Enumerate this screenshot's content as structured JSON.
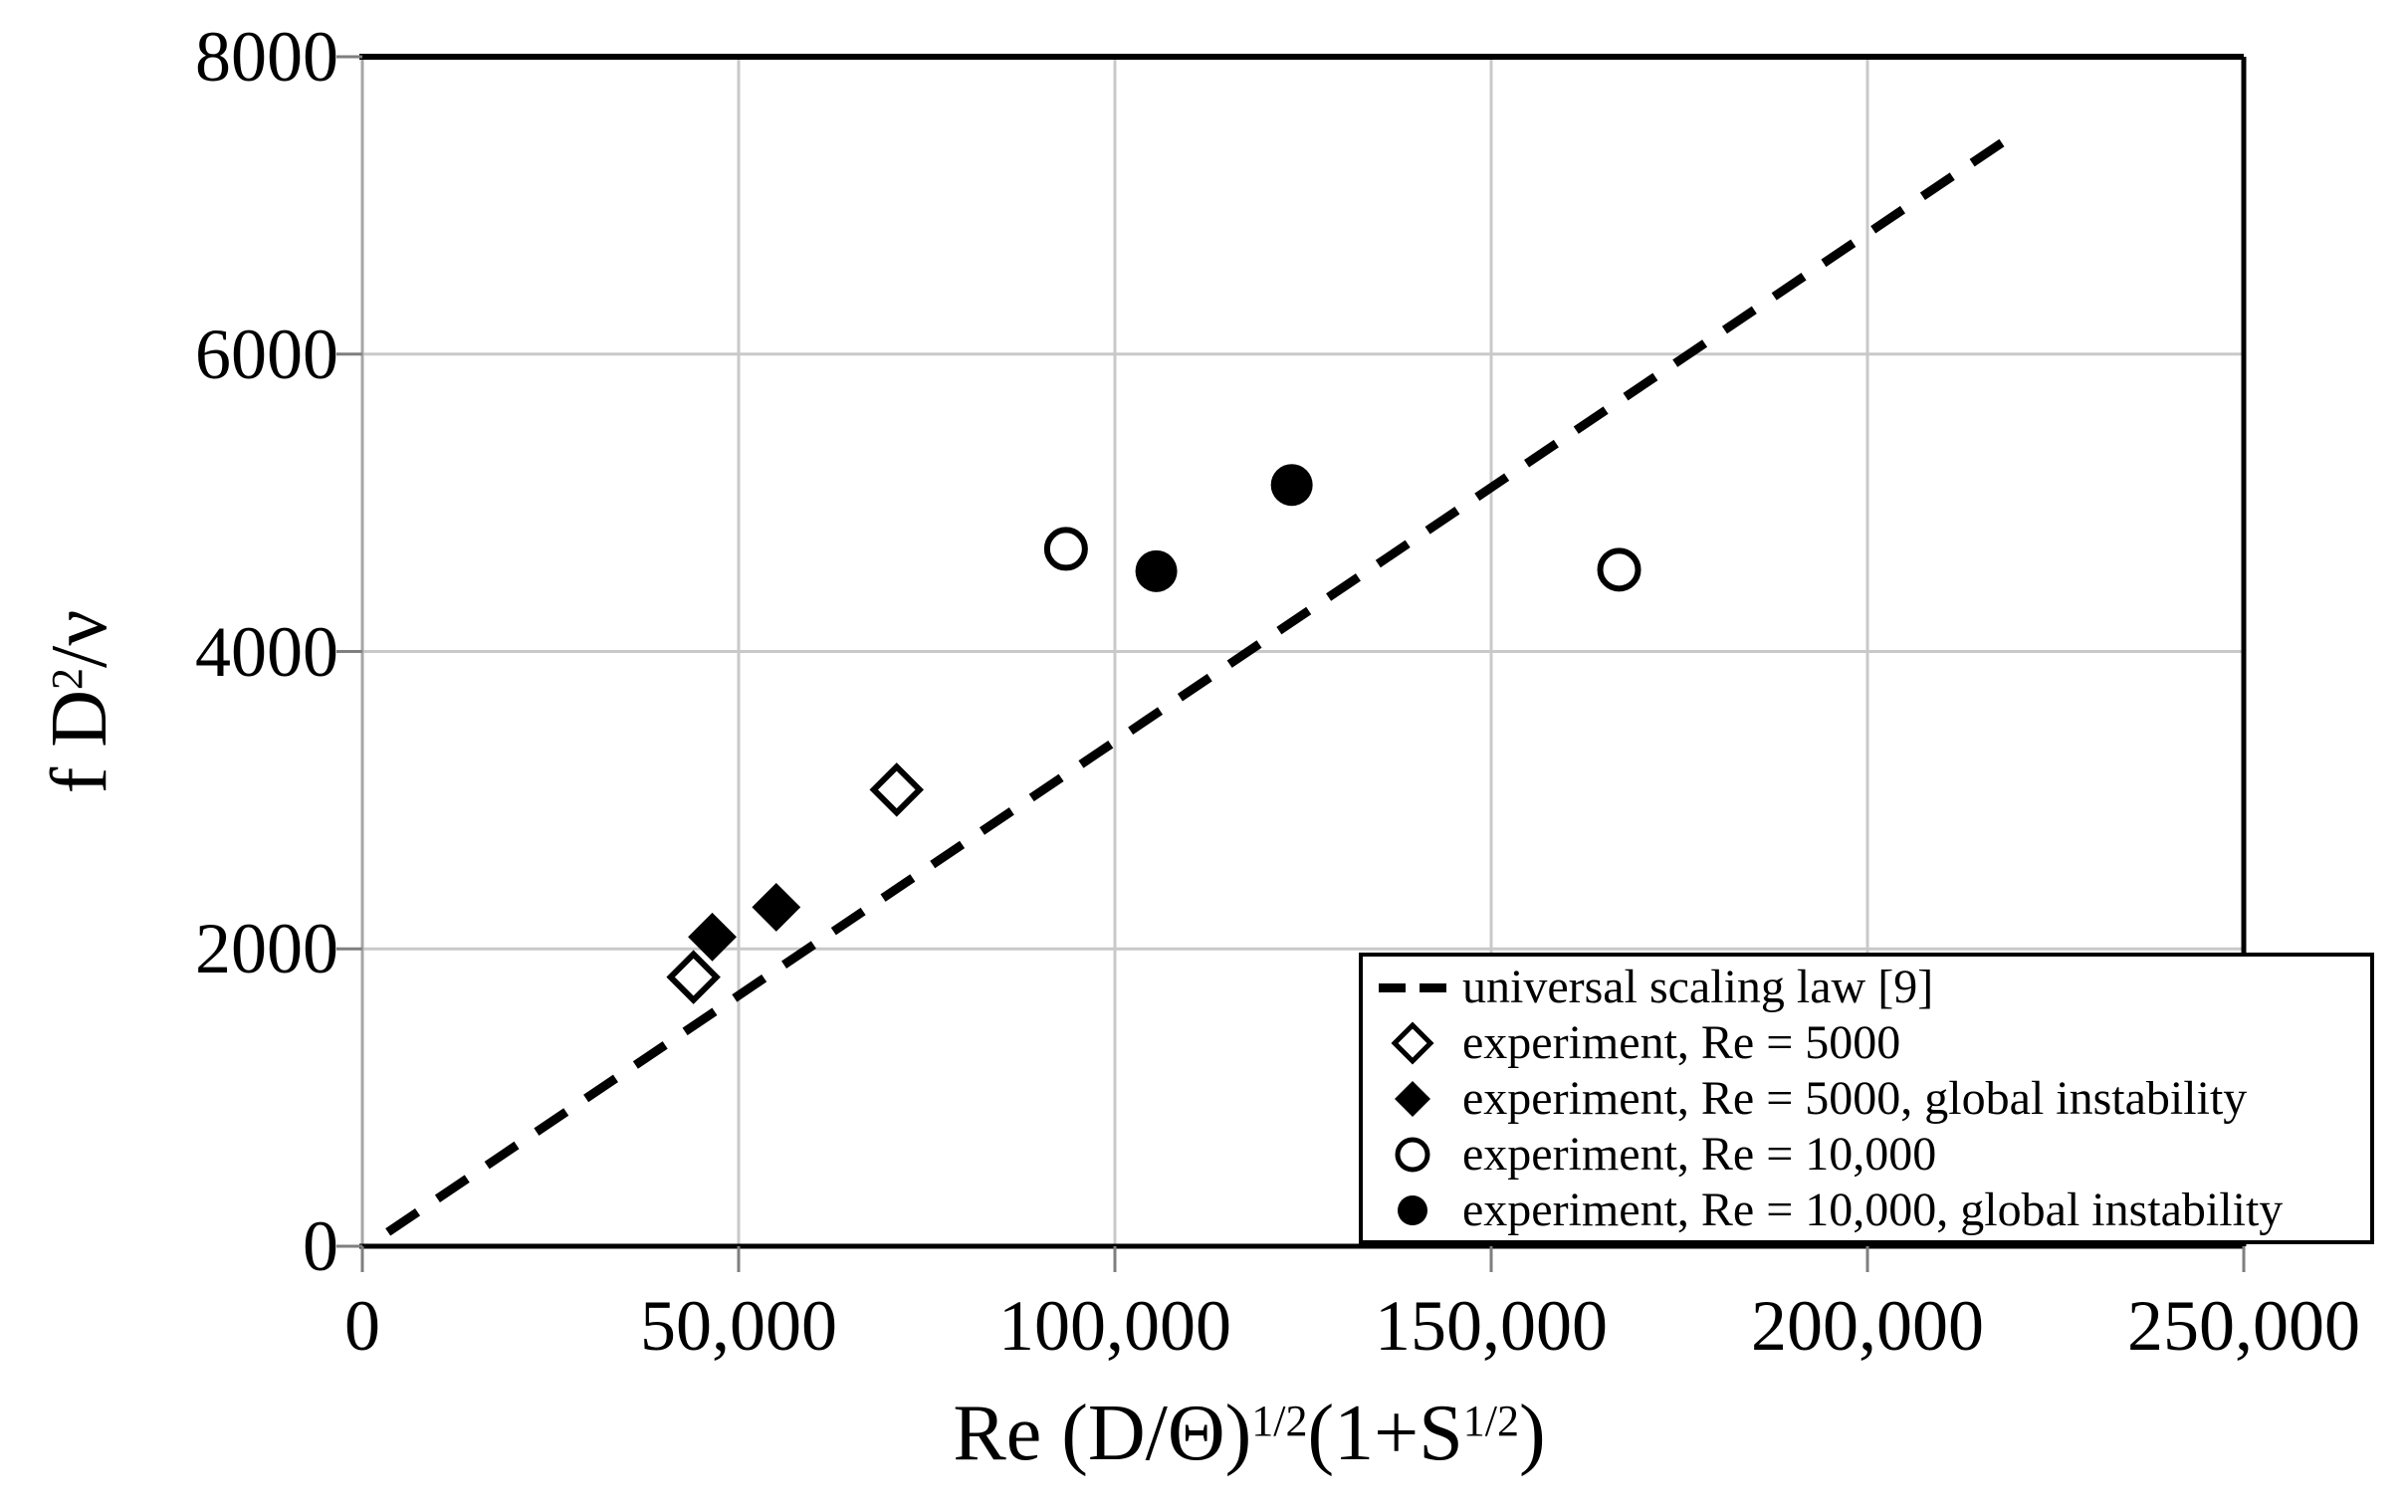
{
  "chart_data": {
    "type": "scatter",
    "x_axis": {
      "label": "Re (D/Θ)^1/2(1+S^1/2)",
      "label_parts": {
        "base1": "Re (D/Θ)",
        "sup1": "1/2",
        "base2": "(1+S",
        "sup2": "1/2",
        "base3": ")"
      },
      "range": [
        0,
        250000
      ],
      "ticks": [
        0,
        50000,
        100000,
        150000,
        200000,
        250000
      ],
      "tick_labels": [
        "0",
        "50,000",
        "100,000",
        "150,000",
        "200,000",
        "250,000"
      ]
    },
    "y_axis": {
      "label": "f D^2/ν",
      "label_parts": {
        "base1": "f D",
        "sup1": "2",
        "base2": "/ν"
      },
      "range": [
        0,
        8000
      ],
      "ticks": [
        0,
        2000,
        4000,
        6000,
        8000
      ],
      "tick_labels": [
        "0",
        "2000",
        "4000",
        "6000",
        "8000"
      ]
    },
    "grid": true,
    "legend_position": "inside-bottom-right",
    "series": [
      {
        "name": "universal scaling law [9]",
        "type": "line",
        "style": "dashed",
        "color": "#000000",
        "points": [
          [
            3400,
            95
          ],
          [
            219000,
            7460
          ]
        ]
      },
      {
        "name": "experiment, Re = 5000",
        "type": "scatter",
        "marker": "open-diamond",
        "color": "#000000",
        "points": [
          [
            44000,
            1810
          ],
          [
            71000,
            3070
          ]
        ]
      },
      {
        "name": "experiment, Re = 5000, global instability",
        "type": "scatter",
        "marker": "filled-diamond",
        "color": "#000000",
        "points": [
          [
            46500,
            2080
          ],
          [
            55000,
            2280
          ]
        ]
      },
      {
        "name": "experiment, Re = 10,000",
        "type": "scatter",
        "marker": "open-circle",
        "color": "#000000",
        "points": [
          [
            93500,
            4690
          ],
          [
            167000,
            4550
          ]
        ]
      },
      {
        "name": "experiment, Re = 10,000, global instability",
        "type": "scatter",
        "marker": "filled-circle",
        "color": "#000000",
        "points": [
          [
            105500,
            4540
          ],
          [
            123500,
            5120
          ]
        ]
      }
    ],
    "colors": {
      "background": "#ffffff",
      "gridline": "#c9c9c9",
      "axis_border": "#000000",
      "y_axis_line": "#a6a6a6",
      "tick": "#7f7f7f",
      "text": "#000000",
      "legend_border": "#000000",
      "legend_background": "#ffffff"
    }
  }
}
